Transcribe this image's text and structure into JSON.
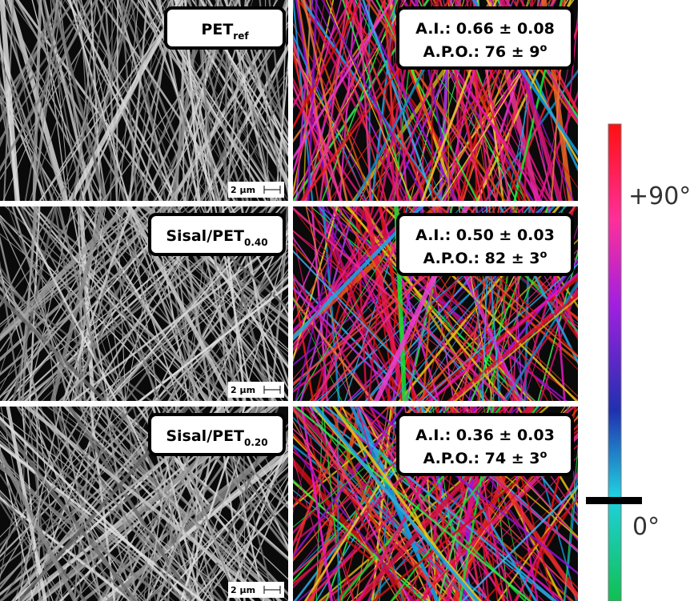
{
  "panels": [
    {
      "label": {
        "main": "PET",
        "sub": "ref"
      },
      "scale_bar": "2 μm",
      "ai": "A.I.: 0.66 ± 0.08",
      "apo": {
        "main": "A.P.O.: 76 ± 9",
        "sup": "o"
      }
    },
    {
      "label": {
        "main": "Sisal/PET",
        "sub": "0.40"
      },
      "scale_bar": "2 μm",
      "ai": "A.I.: 0.50 ± 0.03",
      "apo": {
        "main": "A.P.O.: 82 ± 3",
        "sup": "o"
      }
    },
    {
      "label": {
        "main": "Sisal/PET",
        "sub": "0.20"
      },
      "scale_bar": "2 μm",
      "ai": "A.I.: 0.36 ± 0.03",
      "apo": {
        "main": "A.P.O.: 74 ± 3",
        "sup": "o"
      }
    }
  ],
  "colorbar": {
    "top_label": "+90°",
    "bottom_label": "0°"
  }
}
